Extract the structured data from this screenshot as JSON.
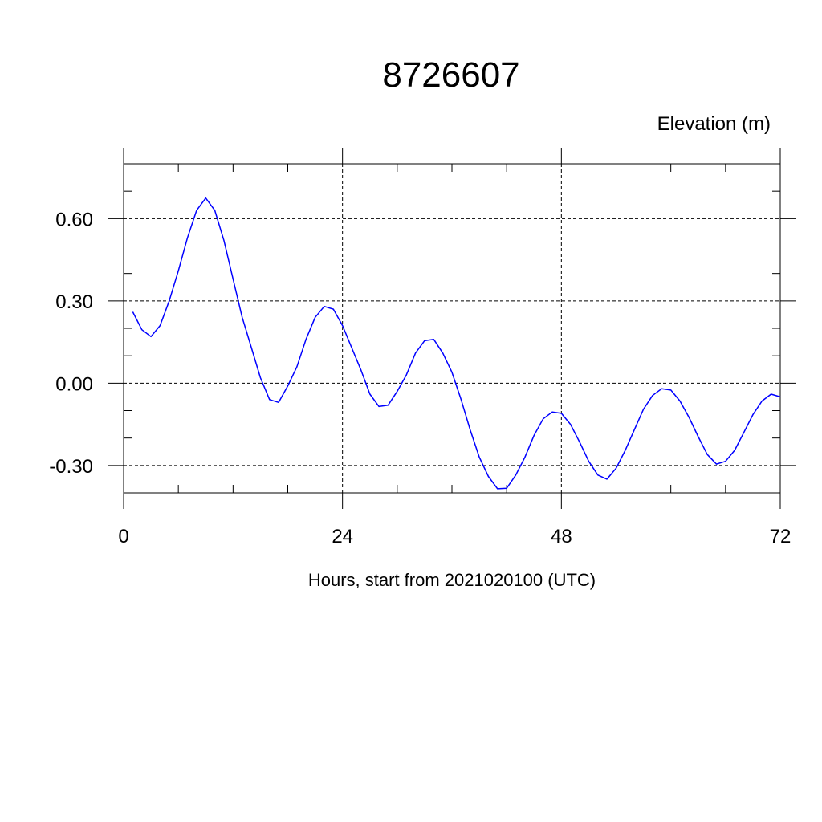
{
  "chart_data": {
    "type": "line",
    "title": "8726607",
    "units_label": "Elevation (m)",
    "xlabel": "Hours, start from 2021020100 (UTC)",
    "ylabel": "",
    "xlim": [
      0,
      72
    ],
    "ylim": [
      -0.4,
      0.8
    ],
    "x_ticks": [
      0,
      24,
      48,
      72
    ],
    "x_tick_labels": [
      "0",
      "24",
      "48",
      "72"
    ],
    "y_ticks": [
      -0.3,
      0.0,
      0.3,
      0.6
    ],
    "y_tick_labels": [
      "-0.30",
      "0.00",
      "0.30",
      "0.60"
    ],
    "grid": true,
    "line_color": "#0000ff",
    "series": [
      {
        "x": [
          1,
          2,
          3,
          4,
          5,
          6,
          7,
          8,
          9,
          10,
          11,
          12,
          13,
          14,
          15,
          16,
          17,
          18,
          19,
          20,
          21,
          22,
          23,
          24,
          25,
          26,
          27,
          28,
          29,
          30,
          31,
          32,
          33,
          34,
          35,
          36,
          37,
          38,
          39,
          40,
          41,
          42,
          43,
          44,
          45,
          46,
          47,
          48,
          49,
          50,
          51,
          52,
          53,
          54,
          55,
          56,
          57,
          58,
          59,
          60,
          61,
          62,
          63,
          64,
          65,
          66,
          67,
          68,
          69,
          70,
          71,
          72
        ],
        "values": [
          0.26,
          0.195,
          0.17,
          0.21,
          0.3,
          0.41,
          0.53,
          0.63,
          0.675,
          0.63,
          0.52,
          0.38,
          0.24,
          0.13,
          0.02,
          -0.06,
          -0.07,
          -0.01,
          0.06,
          0.16,
          0.24,
          0.28,
          0.27,
          0.21,
          0.13,
          0.05,
          -0.04,
          -0.085,
          -0.08,
          -0.03,
          0.03,
          0.11,
          0.155,
          0.16,
          0.11,
          0.04,
          -0.06,
          -0.17,
          -0.27,
          -0.34,
          -0.385,
          -0.383,
          -0.335,
          -0.27,
          -0.19,
          -0.13,
          -0.105,
          -0.11,
          -0.15,
          -0.215,
          -0.285,
          -0.335,
          -0.35,
          -0.31,
          -0.245,
          -0.17,
          -0.095,
          -0.045,
          -0.02,
          -0.025,
          -0.065,
          -0.125,
          -0.195,
          -0.26,
          -0.295,
          -0.285,
          -0.245,
          -0.18,
          -0.115,
          -0.065,
          -0.04,
          -0.05
        ]
      }
    ]
  }
}
